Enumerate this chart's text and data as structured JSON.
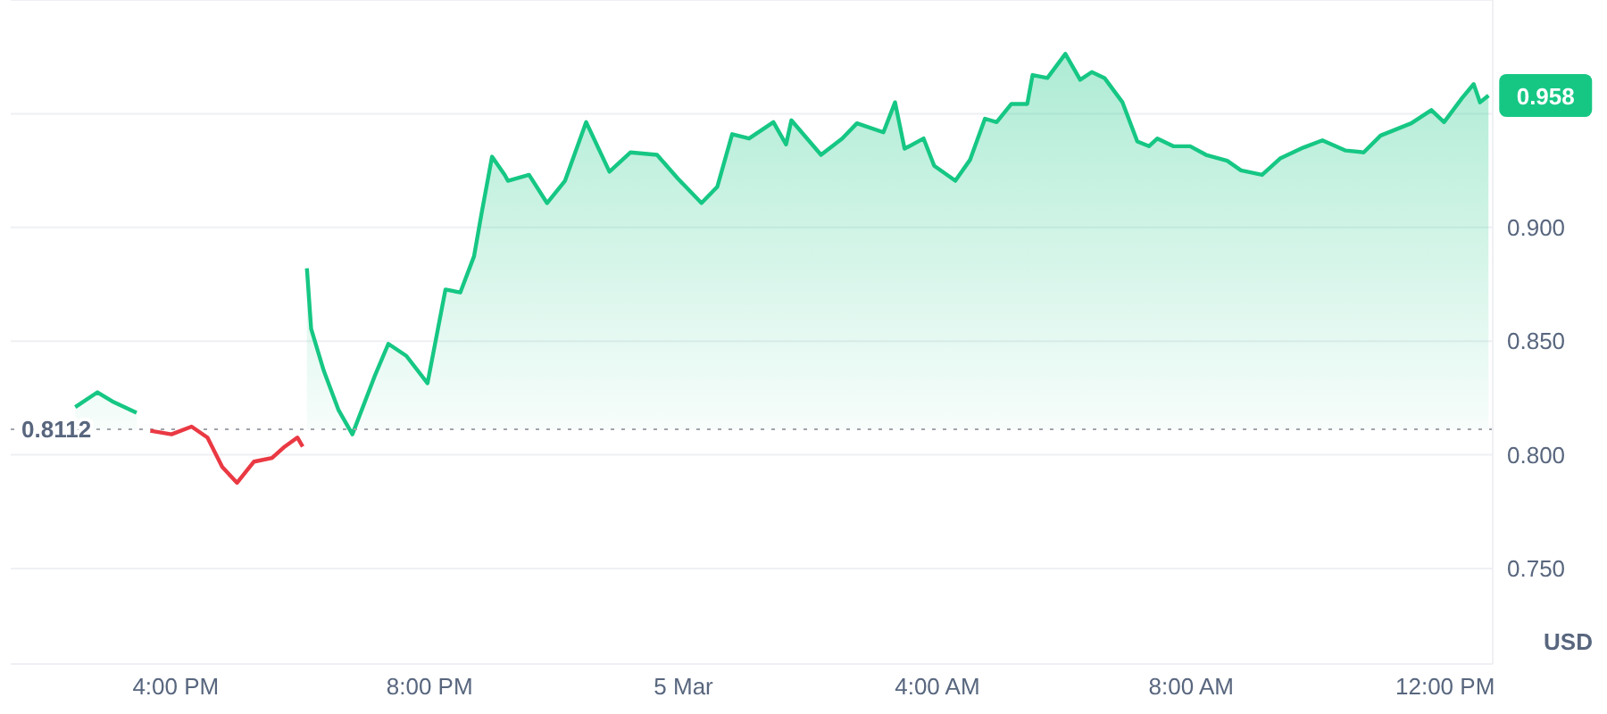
{
  "chart_data": {
    "type": "area",
    "ylabel": "USD",
    "x": [
      "--03-04T14:25",
      "--03-04T14:46",
      "--03-04T15:00",
      "--03-04T15:23",
      "--03-04T15:36",
      "--03-04T15:56",
      "--03-04T16:15",
      "--03-04T16:30",
      "--03-04T16:44",
      "--03-04T16:58",
      "--03-04T17:14",
      "--03-04T17:31",
      "--03-04T17:43",
      "--03-04T17:55",
      "--03-04T18:00",
      "--03-04T18:04",
      "--03-04T18:08",
      "--03-04T18:20",
      "--03-04T18:34",
      "--03-04T18:47",
      "--03-04T19:08",
      "--03-04T19:21",
      "--03-04T19:38",
      "--03-04T19:58",
      "--03-04T20:15",
      "--03-04T20:29",
      "--03-04T20:42",
      "--03-04T20:49",
      "--03-04T20:59",
      "--03-04T21:11",
      "--03-04T21:14",
      "--03-04T21:34",
      "--03-04T21:51",
      "--03-04T22:08",
      "--03-04T22:28",
      "--03-04T22:50",
      "--03-04T23:10",
      "--03-04T23:35",
      "--03-04T23:55",
      "--03-05T00:17",
      "--03-05T00:32",
      "--03-05T00:46",
      "--03-05T01:02",
      "--03-05T01:25",
      "--03-05T01:37",
      "--03-05T01:42",
      "--03-05T02:10",
      "--03-05T02:30",
      "--03-05T02:44",
      "--03-05T03:09",
      "--03-05T03:20",
      "--03-05T03:29",
      "--03-05T03:47",
      "--03-05T03:57",
      "--03-05T04:17",
      "--03-05T04:31",
      "--03-05T04:45",
      "--03-05T04:56",
      "--03-05T05:10",
      "--03-05T05:25",
      "--03-05T05:30",
      "--03-05T05:44",
      "--03-05T06:01",
      "--03-05T06:15",
      "--03-05T06:26",
      "--03-05T06:38",
      "--03-05T06:55",
      "--03-05T07:09",
      "--03-05T07:20",
      "--03-05T07:28",
      "--03-05T07:43",
      "--03-05T07:59",
      "--03-05T08:14",
      "--03-05T08:34",
      "--03-05T08:47",
      "--03-05T09:07",
      "--03-05T09:24",
      "--03-05T09:46",
      "--03-05T10:04",
      "--03-05T10:26",
      "--03-05T10:43",
      "--03-05T10:59",
      "--03-05T11:28",
      "--03-05T11:47",
      "--03-05T11:59",
      "--03-05T12:16",
      "--03-05T12:27",
      "--03-05T12:33",
      "--03-05T12:41"
    ],
    "series": [
      {
        "color": "#16c784",
        "values": [
          0.821,
          0.8275,
          0.8235,
          0.8185,
          null,
          null,
          null,
          null,
          null,
          null,
          null,
          null,
          null,
          null,
          null,
          0.882,
          0.8554,
          0.8369,
          0.8196,
          0.809,
          0.8345,
          0.8488,
          0.8435,
          0.8315,
          0.8727,
          0.8714,
          0.8873,
          0.9059,
          0.9311,
          0.9231,
          0.9205,
          0.9231,
          0.9107,
          0.9205,
          0.9463,
          0.9245,
          0.933,
          0.9319,
          0.9213,
          0.9107,
          0.9179,
          0.941,
          0.9391,
          0.9463,
          0.9365,
          0.9471,
          0.9319,
          0.9391,
          0.9458,
          0.9418,
          0.955,
          0.9346,
          0.9391,
          0.9271,
          0.9205,
          0.9298,
          0.9478,
          0.9463,
          0.9543,
          0.9543,
          0.967,
          0.9657,
          0.9763,
          0.9649,
          0.9683,
          0.9657,
          0.955,
          0.9378,
          0.9357,
          0.9391,
          0.9357,
          0.9357,
          0.9319,
          0.9293,
          0.9251,
          0.9231,
          0.9303,
          0.9351,
          0.9383,
          0.9338,
          0.933,
          0.9404,
          0.9458,
          0.9516,
          0.9463,
          0.9569,
          0.963,
          0.955,
          0.958
        ]
      },
      {
        "type": "line",
        "color": "#ea3943",
        "values": [
          null,
          null,
          null,
          null,
          0.8106,
          0.809,
          0.8124,
          0.8076,
          0.7946,
          0.7877,
          0.797,
          0.7986,
          0.8036,
          0.8076,
          0.8036,
          null,
          null,
          null,
          null,
          null,
          null,
          null,
          null,
          null,
          null,
          null,
          null,
          null,
          null,
          null,
          null,
          null,
          null,
          null,
          null,
          null,
          null,
          null,
          null,
          null,
          null,
          null,
          null,
          null,
          null,
          null,
          null,
          null,
          null,
          null,
          null,
          null,
          null,
          null,
          null,
          null,
          null,
          null,
          null,
          null,
          null,
          null,
          null,
          null,
          null,
          null,
          null,
          null,
          null,
          null,
          null,
          null,
          null,
          null,
          null,
          null,
          null,
          null,
          null,
          null,
          null,
          null,
          null,
          null,
          null,
          null,
          null,
          null,
          null
        ]
      }
    ],
    "xlim": [
      "--03-04T13:24",
      "--03-05T12:45"
    ],
    "xticks": [
      {
        "value": "--03-04T16:00",
        "label": "4:00 PM"
      },
      {
        "value": "--03-04T20:00",
        "label": "8:00 PM"
      },
      {
        "value": "--03-05T00:00",
        "label": "5 Mar"
      },
      {
        "value": "--03-05T04:00",
        "label": "4:00 AM"
      },
      {
        "value": "--03-05T08:00",
        "label": "8:00 AM"
      },
      {
        "value": "--03-05T12:00",
        "label": "12:00 PM"
      }
    ],
    "ylim": [
      0.708,
      1.0
    ],
    "yticks": [
      {
        "value": 0.75,
        "label": "0.750"
      },
      {
        "value": 0.8,
        "label": "0.800"
      },
      {
        "value": 0.85,
        "label": "0.850"
      },
      {
        "value": 0.9,
        "label": "0.900"
      },
      {
        "value": 0.95,
        "label": null
      }
    ],
    "ref_lines": [
      {
        "axis": "y",
        "value": 0.8112,
        "label": "0.8112",
        "line_style": "dotted",
        "color": "#a0a4ab"
      }
    ],
    "annotations": [
      {
        "text": "0.958",
        "x": "--03-05T12:41",
        "y": 0.958
      }
    ],
    "grid": "y"
  }
}
